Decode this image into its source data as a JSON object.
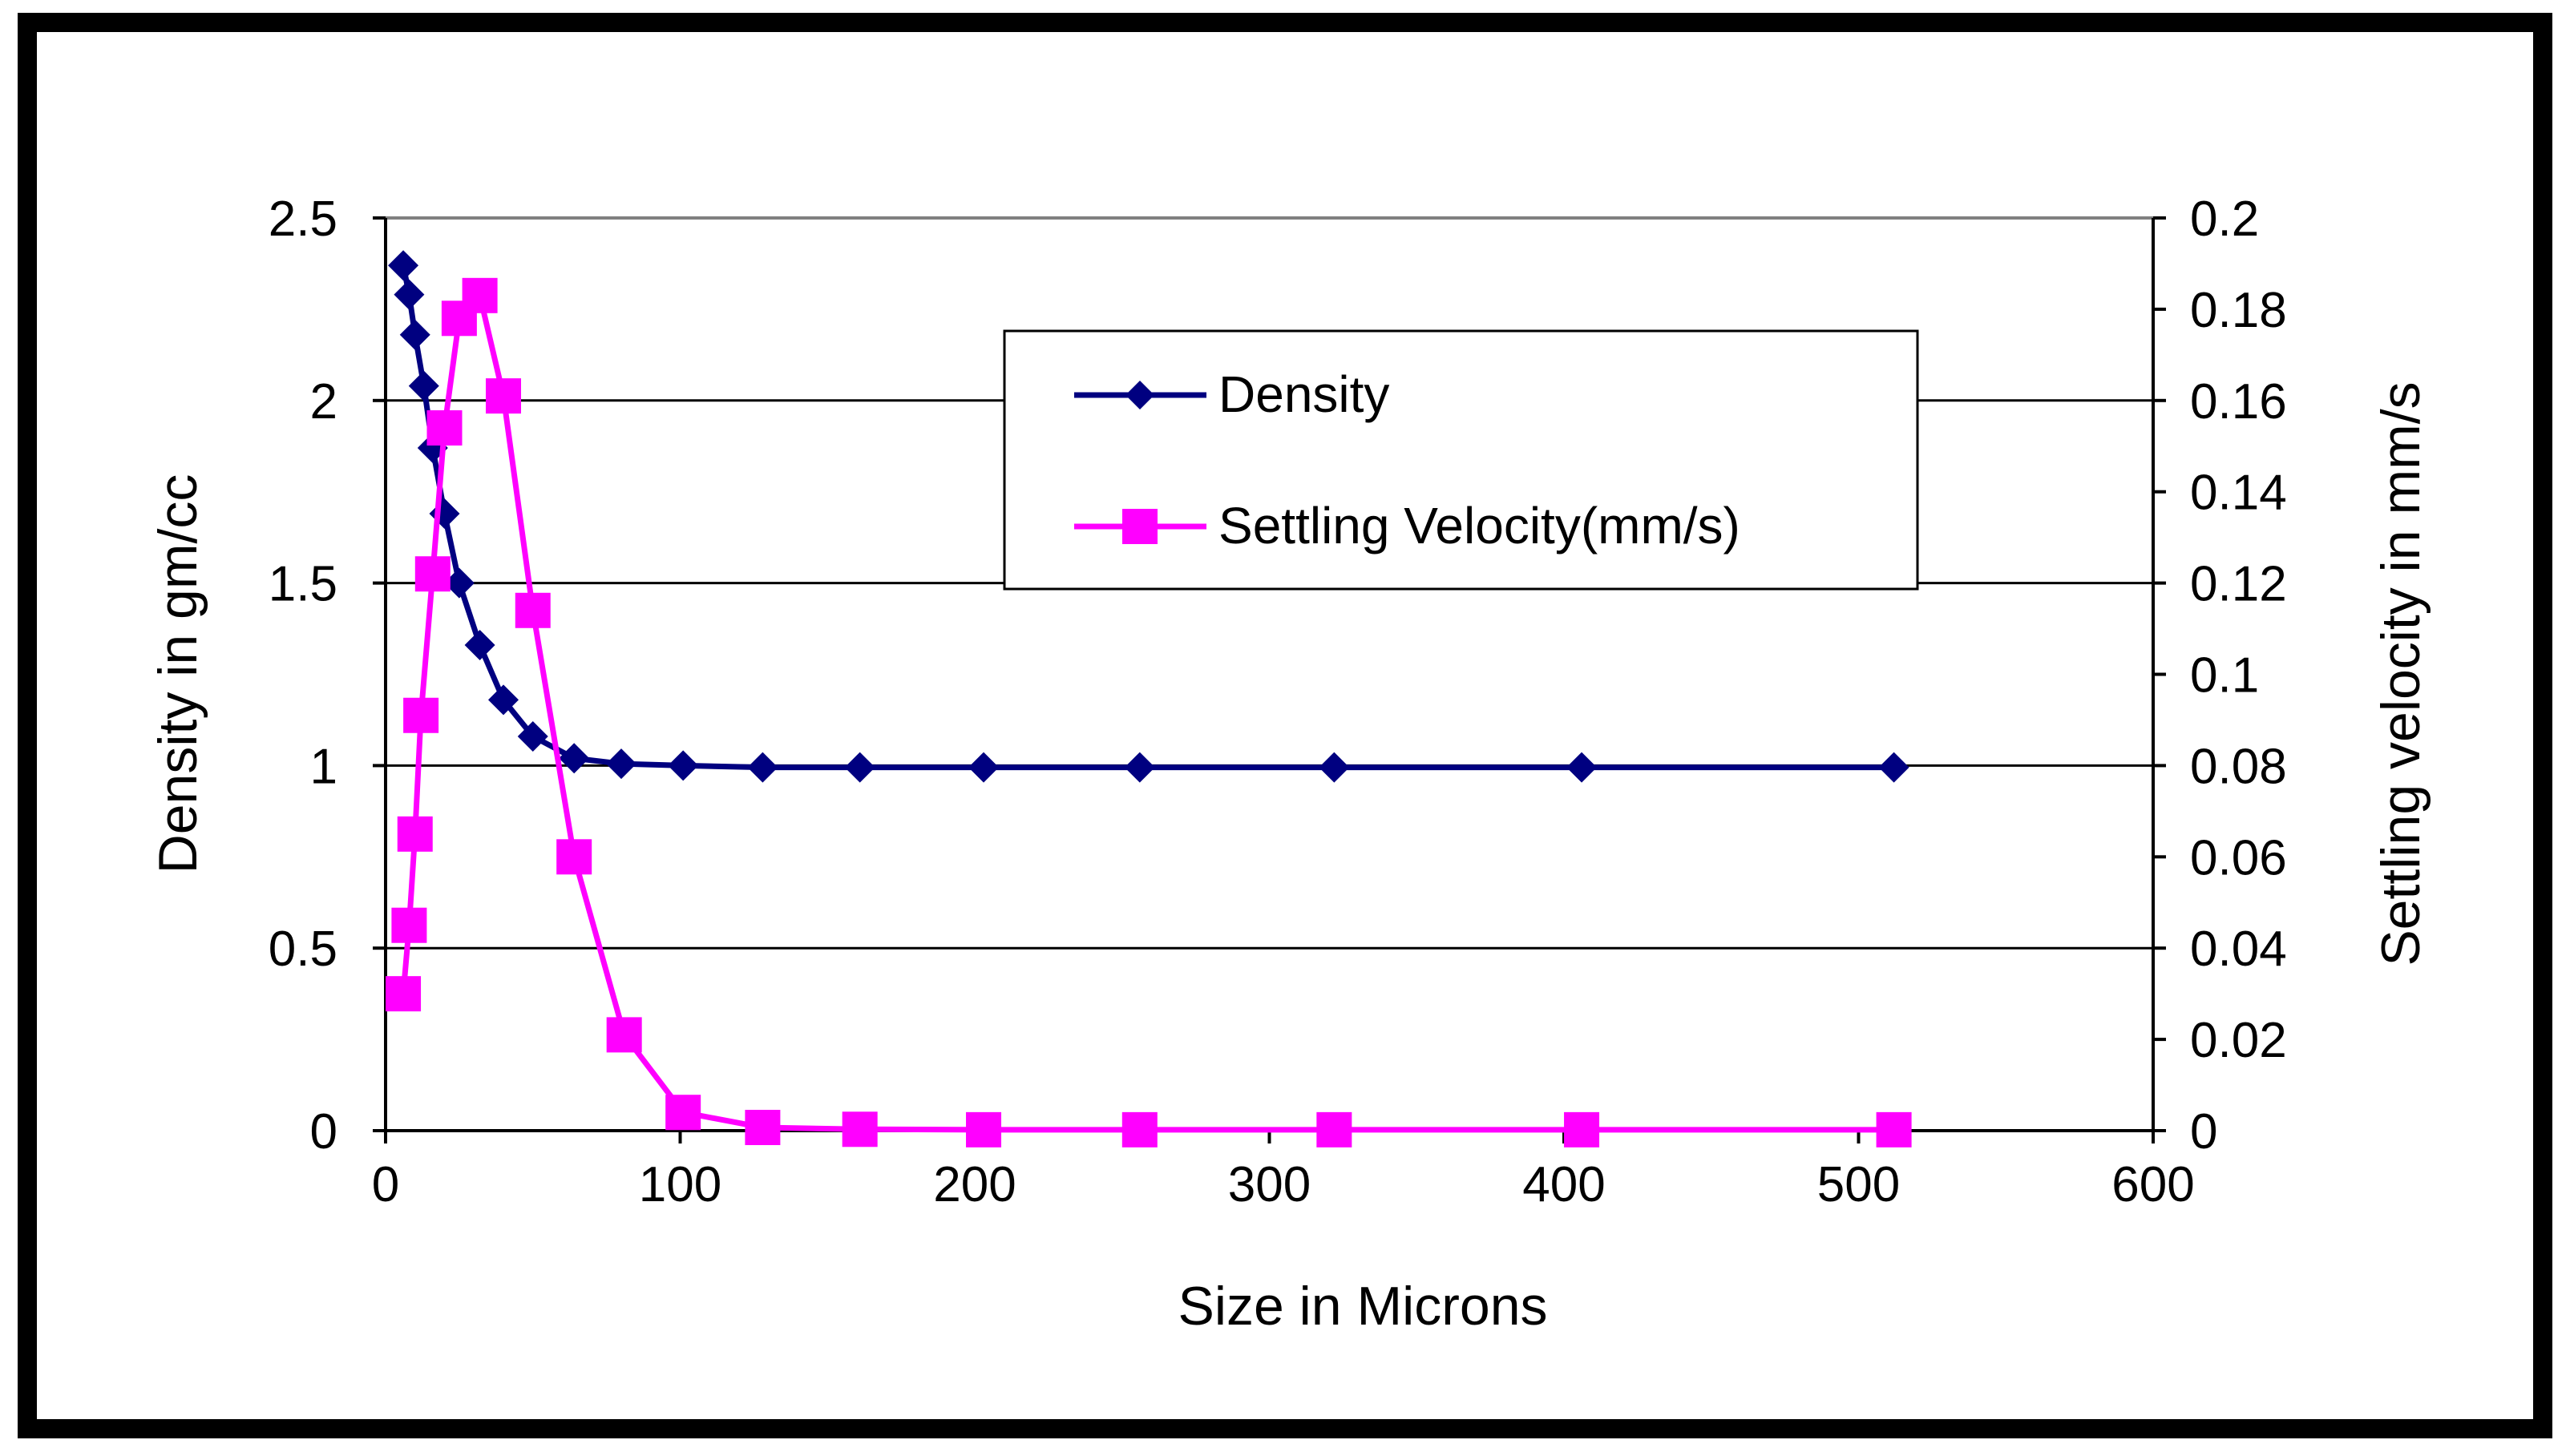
{
  "chart_data": {
    "type": "line",
    "title": "",
    "xlabel": "Size in Microns",
    "ylabel": "Density in gm/cc",
    "y2label": "Settling velocity in mm/s",
    "xlim": [
      0,
      600
    ],
    "ylim": [
      0,
      2.5
    ],
    "y2lim": [
      0,
      0.2
    ],
    "x_ticks": [
      "0",
      "100",
      "200",
      "300",
      "400",
      "500",
      "600"
    ],
    "y_ticks": [
      "0",
      "0.5",
      "1",
      "1.5",
      "2",
      "2.5"
    ],
    "y2_ticks": [
      "0",
      "0.02",
      "0.04",
      "0.06",
      "0.08",
      "0.1",
      "0.12",
      "0.14",
      "0.16",
      "0.18",
      "0.2"
    ],
    "grid": true,
    "legend_position": "top-center",
    "series": [
      {
        "name": "Density",
        "axis": "left",
        "color": "#000080",
        "marker": "diamond",
        "x": [
          6,
          8,
          10,
          13,
          16,
          20,
          25,
          32,
          40,
          50,
          64,
          80,
          101,
          128,
          161,
          203,
          256,
          322,
          406,
          512
        ],
        "values": [
          2.37,
          2.29,
          2.18,
          2.04,
          1.87,
          1.69,
          1.5,
          1.33,
          1.18,
          1.08,
          1.02,
          1.005,
          1.0,
          0.995,
          0.995,
          0.995,
          0.995,
          0.995,
          0.995,
          0.995
        ]
      },
      {
        "name": "Settling Velocity(mm/s)",
        "axis": "right",
        "color": "#ff00ff",
        "marker": "square",
        "x": [
          6,
          8,
          10,
          12,
          16,
          20,
          25,
          32,
          40,
          50,
          64,
          81,
          101,
          128,
          161,
          203,
          256,
          322,
          406,
          512
        ],
        "values": [
          0.03,
          0.045,
          0.065,
          0.091,
          0.122,
          0.154,
          0.178,
          0.183,
          0.161,
          0.114,
          0.06,
          0.021,
          0.004,
          0.0007,
          0.0003,
          0.0002,
          0.0002,
          0.0002,
          0.0002,
          0.0002
        ]
      }
    ]
  }
}
